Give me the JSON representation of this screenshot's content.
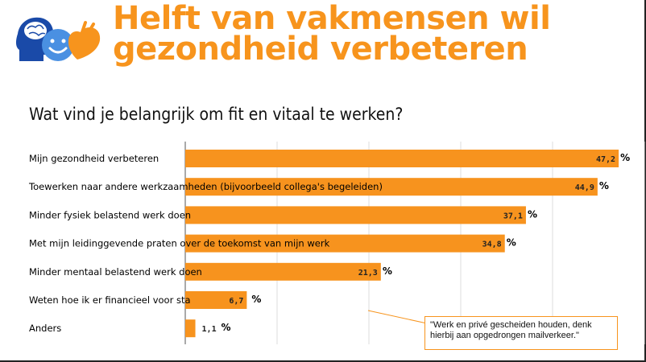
{
  "header": {
    "headline": "Helft van vakmensen wil gezondheid verbeteren"
  },
  "logo": {
    "icon": "head-smiley-heart-logo"
  },
  "colors": {
    "accent": "#f7941d",
    "bar": "#f7931e",
    "brain": "#1a4aa8",
    "smiley": "#4a90e2"
  },
  "chart_data": {
    "type": "bar",
    "orientation": "horizontal",
    "title": "Wat vind je belangrijk om fit en vitaal te werken?",
    "unit": "%",
    "categories": [
      "Mijn gezondheid verbeteren",
      "Toewerken naar andere werkzaamheden (bijvoorbeeld collega's begeleiden)",
      "Minder fysiek belastend werk doen",
      "Met mijn leidinggevende praten over de toekomst van mijn werk",
      "Minder mentaal belastend werk doen",
      "Weten hoe ik er financieel voor sta",
      "Anders"
    ],
    "values": [
      47.2,
      44.9,
      37.1,
      34.8,
      21.3,
      6.7,
      1.1
    ],
    "value_labels": [
      "47,2",
      "44,9",
      "37,1",
      "34,8",
      "21,3",
      "6,7",
      "1,1"
    ],
    "xlim": [
      0,
      50
    ],
    "grid": true
  },
  "callout": {
    "text": "\"Werk en privé gescheiden houden, denk hierbij aan opgedrongen mailverkeer.\""
  }
}
